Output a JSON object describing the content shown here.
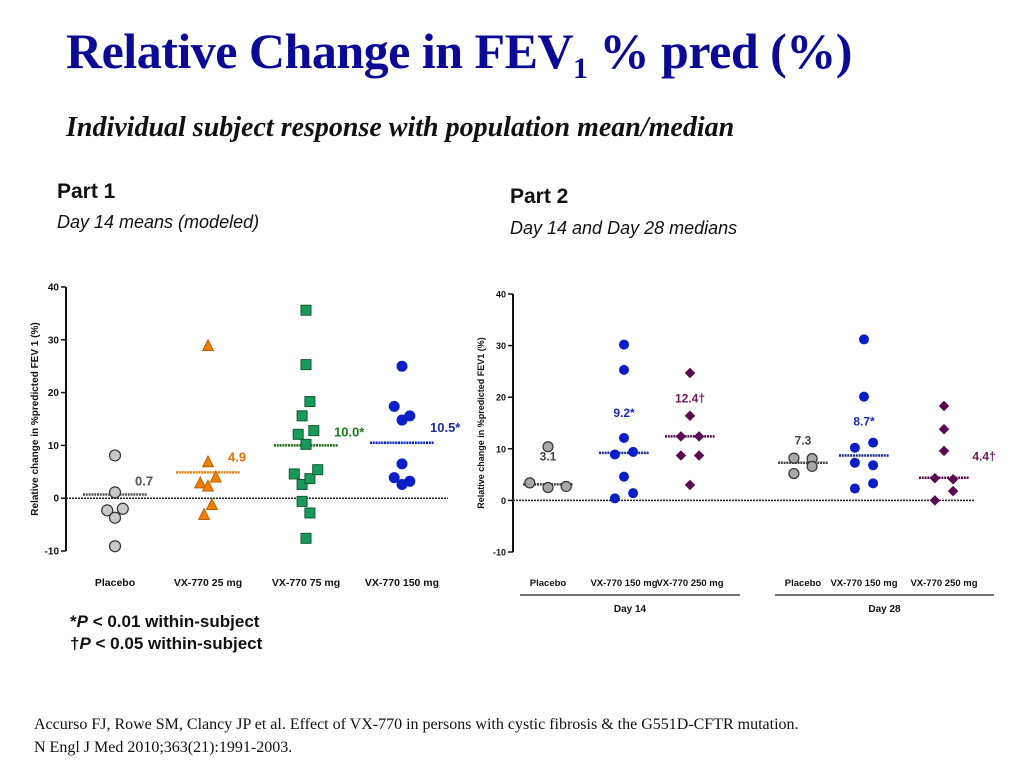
{
  "slide": {
    "title_main": "Relative Change in FEV",
    "title_sub": "1",
    "title_tail": " % pred (%)",
    "subtitle": "Individual subject response with population mean/median",
    "part1": {
      "heading": "Part 1",
      "subheading": "Day 14 means (modeled)"
    },
    "part2": {
      "heading": "Part 2",
      "subheading": "Day 14 and Day 28 medians"
    },
    "footnotes": [
      {
        "symbol": "*",
        "p": "P",
        "text": " < 0.01 within-subject"
      },
      {
        "symbol": "†",
        "p": "P",
        "text": " < 0.05 within-subject"
      }
    ],
    "citation_line1": "Accurso FJ, Rowe SM, Clancy JP et al. Effect of VX-770 in persons with cystic fibrosis & the G551D-CFTR mutation.",
    "citation_line2": "N Engl J Med 2010;363(21):1991-2003."
  },
  "chart_data": [
    {
      "type": "scatter",
      "title": "Part 1",
      "subtitle": "Day 14 means (modeled)",
      "xlabel": "",
      "ylabel": "Relative change in %predicted FEV 1 (%)",
      "ylim": [
        -10,
        40
      ],
      "yticks": [
        -10,
        0,
        10,
        20,
        30,
        40
      ],
      "reference_line": 0,
      "grid": false,
      "categories": [
        "Placebo",
        "VX-770 25 mg",
        "VX-770 75 mg",
        "VX-770 150 mg"
      ],
      "series": [
        {
          "name": "Placebo",
          "marker": "circle",
          "color": "#c8c8c8",
          "stroke": "#333333",
          "line_color": "#555555",
          "summary": 0.7,
          "summary_label": "0.7",
          "label_color": "#555555",
          "points": [
            [
              0,
              8.1
            ],
            [
              0,
              1.1
            ],
            [
              -1,
              -2.3
            ],
            [
              1,
              -2.0
            ],
            [
              0,
              -3.7
            ],
            [
              0,
              -9.1
            ]
          ]
        },
        {
          "name": "VX-770 25 mg",
          "marker": "triangle",
          "color": "#f07f00",
          "stroke": "#b05500",
          "line_color": "#f07f00",
          "summary": 4.9,
          "summary_label": "4.9",
          "label_color": "#e07000",
          "points": [
            [
              0,
              28.8
            ],
            [
              0,
              6.8
            ],
            [
              -1,
              2.8
            ],
            [
              0,
              2.2
            ],
            [
              1,
              3.9
            ],
            [
              0.5,
              -1.3
            ],
            [
              -0.5,
              -3.2
            ]
          ]
        },
        {
          "name": "VX-770 75 mg",
          "marker": "square",
          "color": "#1a9a5a",
          "stroke": "#0d5a30",
          "line_color": "#1a6a1a",
          "summary": 10.0,
          "summary_label": "10.0*",
          "label_color": "#1a7a1a",
          "points": [
            [
              0,
              35.6
            ],
            [
              0,
              25.3
            ],
            [
              0.5,
              18.3
            ],
            [
              -0.5,
              15.6
            ],
            [
              -1,
              12.1
            ],
            [
              1,
              12.8
            ],
            [
              0,
              10.2
            ],
            [
              -1.5,
              4.6
            ],
            [
              -0.5,
              2.6
            ],
            [
              0.5,
              3.7
            ],
            [
              1.5,
              5.4
            ],
            [
              -0.5,
              -0.6
            ],
            [
              0.5,
              -2.8
            ],
            [
              0,
              -7.6
            ]
          ]
        },
        {
          "name": "VX-770 150 mg",
          "marker": "circle",
          "color": "#0a1ec8",
          "stroke": "#0a1ec8",
          "line_color": "#0a1ec8",
          "summary": 10.5,
          "summary_label": "10.5*",
          "label_color": "#1a2aa8",
          "points": [
            [
              0,
              25.0
            ],
            [
              -1,
              17.4
            ],
            [
              0,
              14.8
            ],
            [
              1,
              15.6
            ],
            [
              0,
              6.5
            ],
            [
              -1,
              3.9
            ],
            [
              0,
              2.6
            ],
            [
              1,
              3.2
            ]
          ]
        }
      ]
    },
    {
      "type": "scatter",
      "title": "Part 2",
      "subtitle": "Day 14 and Day 28 medians",
      "xlabel": "",
      "ylabel": "Relative change in %predicted FEV1 (%)",
      "ylim": [
        -10,
        40
      ],
      "yticks": [
        -10,
        0,
        10,
        20,
        30,
        40
      ],
      "reference_line": 0,
      "grid": false,
      "categories": [
        "Placebo",
        "VX-770 150 mg",
        "VX-770 250 mg",
        "Placebo",
        "VX-770 150 mg",
        "VX-770 250 mg"
      ],
      "groups": [
        {
          "label": "Day 14",
          "categories": [
            0,
            1,
            2
          ]
        },
        {
          "label": "Day 28",
          "categories": [
            3,
            4,
            5
          ]
        }
      ],
      "series": [
        {
          "name": "Placebo Day 14",
          "marker": "circle",
          "color": "#a8a8a8",
          "stroke": "#333333",
          "line_color": "#444444",
          "summary": 3.1,
          "summary_label": "3.1",
          "label_color": "#444444",
          "points": [
            [
              0,
              10.4
            ],
            [
              -1,
              3.4
            ],
            [
              0,
              2.5
            ],
            [
              1,
              2.7
            ]
          ]
        },
        {
          "name": "VX-770 150 mg Day 14",
          "marker": "circle",
          "color": "#0a1ec8",
          "stroke": "#0a1ec8",
          "line_color": "#1a2a8a",
          "summary": 9.2,
          "summary_label": "9.2*",
          "label_color": "#1a2ab8",
          "points": [
            [
              0,
              30.2
            ],
            [
              0,
              25.3
            ],
            [
              0,
              12.1
            ],
            [
              -0.5,
              8.9
            ],
            [
              0.5,
              9.4
            ],
            [
              0,
              4.6
            ],
            [
              -0.5,
              0.4
            ],
            [
              0.5,
              1.4
            ]
          ]
        },
        {
          "name": "VX-770 250 mg Day 14",
          "marker": "diamond",
          "color": "#5a0a50",
          "stroke": "#5a0a50",
          "line_color": "#5a0a50",
          "summary": 12.4,
          "summary_label": "12.4†",
          "label_color": "#6a1a60",
          "points": [
            [
              0,
              24.7
            ],
            [
              0,
              16.4
            ],
            [
              -0.5,
              12.4
            ],
            [
              0.5,
              12.4
            ],
            [
              -0.5,
              8.7
            ],
            [
              0.5,
              8.7
            ],
            [
              0,
              3.0
            ]
          ]
        },
        {
          "name": "Placebo Day 28",
          "marker": "circle",
          "color": "#a8a8a8",
          "stroke": "#333333",
          "line_color": "#444444",
          "summary": 7.3,
          "summary_label": "7.3",
          "label_color": "#444444",
          "points": [
            [
              -0.5,
              8.2
            ],
            [
              0.5,
              8.1
            ],
            [
              0.5,
              6.6
            ],
            [
              -0.5,
              5.2
            ]
          ]
        },
        {
          "name": "VX-770 150 mg Day 28",
          "marker": "circle",
          "color": "#0a1ec8",
          "stroke": "#0a1ec8",
          "line_color": "#1a2a8a",
          "summary": 8.7,
          "summary_label": "8.7*",
          "label_color": "#1a2ab8",
          "points": [
            [
              0,
              31.2
            ],
            [
              0,
              20.1
            ],
            [
              -0.5,
              10.2
            ],
            [
              0.5,
              11.2
            ],
            [
              -0.5,
              7.3
            ],
            [
              0.5,
              6.8
            ],
            [
              -0.5,
              2.3
            ],
            [
              0.5,
              3.3
            ]
          ]
        },
        {
          "name": "VX-770 250 mg Day 28",
          "marker": "diamond",
          "color": "#5a0a50",
          "stroke": "#5a0a50",
          "line_color": "#5a0a50",
          "summary": 4.4,
          "summary_label": "4.4†",
          "label_color": "#6a1a60",
          "points": [
            [
              0,
              18.3
            ],
            [
              0,
              13.8
            ],
            [
              0,
              9.6
            ],
            [
              -0.5,
              4.3
            ],
            [
              0.5,
              4.1
            ],
            [
              0.5,
              1.8
            ],
            [
              -0.5,
              0.0
            ]
          ]
        }
      ]
    }
  ]
}
